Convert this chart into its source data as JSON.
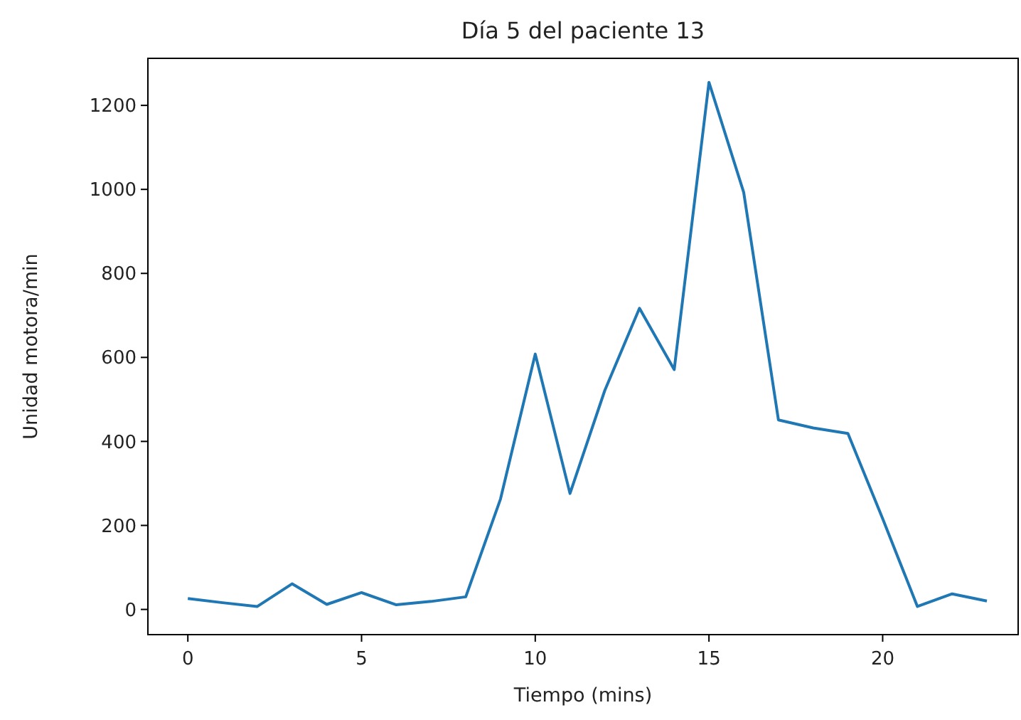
{
  "chart_data": {
    "type": "line",
    "title": "Día 5 del paciente 13",
    "xlabel": "Tiempo (mins)",
    "ylabel": "Unidad motora/min",
    "x": [
      0,
      1,
      2,
      3,
      4,
      5,
      6,
      7,
      8,
      9,
      10,
      11,
      12,
      13,
      14,
      15,
      16,
      17,
      18,
      19,
      20,
      21,
      22,
      23
    ],
    "series": [
      {
        "color": "#1f77b4",
        "values": [
          26,
          16,
          7,
          61,
          12,
          40,
          11,
          19,
          30,
          263,
          608,
          276,
          521,
          717,
          571,
          1255,
          993,
          451,
          432,
          419,
          216,
          7,
          37,
          20
        ]
      }
    ],
    "xlim": [
      -1.15,
      23.9
    ],
    "xticks": [
      0,
      5,
      10,
      15,
      20
    ],
    "ylim": [
      -60,
      1312
    ],
    "yticks": [
      0,
      200,
      400,
      600,
      800,
      1000,
      1200
    ],
    "grid": false
  }
}
